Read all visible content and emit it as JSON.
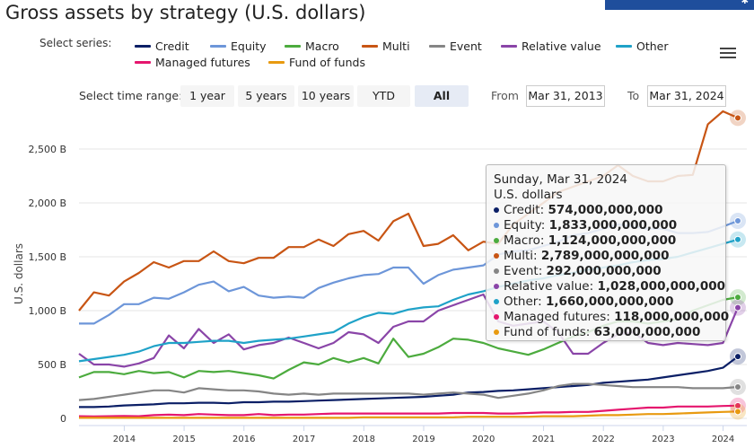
{
  "title": "Gross assets by strategy (U.S. dollars)",
  "select_series_label": "Select series:",
  "legend": [
    {
      "name": "Credit",
      "color": "#0b1f66"
    },
    {
      "name": "Equity",
      "color": "#6d96d9"
    },
    {
      "name": "Macro",
      "color": "#4cab3e"
    },
    {
      "name": "Multi",
      "color": "#c85514"
    },
    {
      "name": "Event",
      "color": "#858585"
    },
    {
      "name": "Relative value",
      "color": "#8a45a8"
    },
    {
      "name": "Other",
      "color": "#1fa2c8"
    },
    {
      "name": "Managed futures",
      "color": "#e5166e"
    },
    {
      "name": "Fund of funds",
      "color": "#e89a10"
    }
  ],
  "menu_icon": "hamburger-menu-icon",
  "time_range": {
    "label": "Select time range:",
    "buttons": [
      "1 year",
      "5 years",
      "10 years",
      "YTD",
      "All"
    ],
    "active": "All",
    "from_label": "From",
    "from_value": "Mar 31, 2013",
    "to_label": "To",
    "to_value": "Mar 31, 2024"
  },
  "tooltip": {
    "date": "Sunday, Mar 31, 2024",
    "unit": "U.S. dollars",
    "rows": [
      {
        "name": "Credit",
        "value": "574,000,000,000",
        "color": "#0b1f66"
      },
      {
        "name": "Equity",
        "value": "1,833,000,000,000",
        "color": "#6d96d9"
      },
      {
        "name": "Macro",
        "value": "1,124,000,000,000",
        "color": "#4cab3e"
      },
      {
        "name": "Multi",
        "value": "2,789,000,000,000",
        "color": "#c85514"
      },
      {
        "name": "Event",
        "value": "292,000,000,000",
        "color": "#858585"
      },
      {
        "name": "Relative value",
        "value": "1,028,000,000,000",
        "color": "#8a45a8"
      },
      {
        "name": "Other",
        "value": "1,660,000,000,000",
        "color": "#1fa2c8"
      },
      {
        "name": "Managed futures",
        "value": "118,000,000,000",
        "color": "#e5166e"
      },
      {
        "name": "Fund of funds",
        "value": "63,000,000,000",
        "color": "#e89a10"
      }
    ]
  },
  "chart_data": {
    "type": "line",
    "title": "Gross assets by strategy (U.S. dollars)",
    "xlabel": "",
    "ylabel": "U.S. dollars",
    "x_ticks": [
      "2014",
      "2015",
      "2016",
      "2017",
      "2018",
      "2019",
      "2020",
      "2021",
      "2022",
      "2023",
      "2024"
    ],
    "y_ticks": [
      "0",
      "500 B",
      "1,000 B",
      "1,500 B",
      "2,000 B",
      "2,500 B"
    ],
    "ylim": [
      0,
      2800
    ],
    "x_range": [
      "2013-03-31",
      "2024-03-31"
    ],
    "grid": true,
    "units": "billions of U.S. dollars",
    "x": [
      "2013-03-31",
      "2013-06-30",
      "2013-09-30",
      "2013-12-31",
      "2014-03-31",
      "2014-06-30",
      "2014-09-30",
      "2014-12-31",
      "2015-03-31",
      "2015-06-30",
      "2015-09-30",
      "2015-12-31",
      "2016-03-31",
      "2016-06-30",
      "2016-09-30",
      "2016-12-31",
      "2017-03-31",
      "2017-06-30",
      "2017-09-30",
      "2017-12-31",
      "2018-03-31",
      "2018-06-30",
      "2018-09-30",
      "2018-12-31",
      "2019-03-31",
      "2019-06-30",
      "2019-09-30",
      "2019-12-31",
      "2020-03-31",
      "2020-06-30",
      "2020-09-30",
      "2020-12-31",
      "2021-03-31",
      "2021-06-30",
      "2021-09-30",
      "2021-12-31",
      "2022-03-31",
      "2022-06-30",
      "2022-09-30",
      "2022-12-31",
      "2023-03-31",
      "2023-06-30",
      "2023-09-30",
      "2023-12-31",
      "2024-03-31"
    ],
    "series": [
      {
        "name": "Credit",
        "values": [
          105,
          105,
          110,
          120,
          125,
          130,
          140,
          140,
          145,
          145,
          140,
          150,
          150,
          155,
          155,
          160,
          165,
          170,
          175,
          180,
          185,
          190,
          195,
          200,
          210,
          220,
          240,
          245,
          255,
          260,
          270,
          280,
          290,
          300,
          310,
          330,
          340,
          350,
          360,
          380,
          400,
          420,
          440,
          470,
          574
        ]
      },
      {
        "name": "Equity",
        "values": [
          880,
          880,
          960,
          1060,
          1060,
          1120,
          1110,
          1170,
          1240,
          1270,
          1180,
          1220,
          1140,
          1120,
          1130,
          1120,
          1210,
          1260,
          1300,
          1330,
          1340,
          1400,
          1400,
          1250,
          1330,
          1380,
          1400,
          1420,
          1520,
          1550,
          1560,
          1600,
          1640,
          1700,
          1720,
          1760,
          1800,
          1780,
          1760,
          1760,
          1720,
          1720,
          1730,
          1780,
          1833
        ]
      },
      {
        "name": "Macro",
        "values": [
          380,
          430,
          430,
          410,
          440,
          420,
          430,
          380,
          440,
          430,
          440,
          420,
          400,
          370,
          450,
          520,
          500,
          560,
          520,
          560,
          510,
          740,
          570,
          600,
          660,
          740,
          730,
          700,
          650,
          620,
          590,
          640,
          700,
          760,
          800,
          860,
          900,
          900,
          880,
          900,
          920,
          1000,
          1050,
          1100,
          1124
        ]
      },
      {
        "name": "Multi",
        "values": [
          1000,
          1170,
          1140,
          1270,
          1350,
          1450,
          1400,
          1460,
          1460,
          1550,
          1460,
          1440,
          1490,
          1490,
          1590,
          1590,
          1660,
          1600,
          1710,
          1740,
          1650,
          1830,
          1900,
          1600,
          1620,
          1700,
          1560,
          1640,
          1620,
          1800,
          1900,
          2000,
          2100,
          2150,
          2200,
          2250,
          2350,
          2250,
          2200,
          2200,
          2250,
          2260,
          2730,
          2850,
          2789
        ]
      },
      {
        "name": "Event",
        "values": [
          170,
          180,
          200,
          220,
          240,
          260,
          260,
          240,
          280,
          270,
          260,
          260,
          250,
          230,
          220,
          230,
          220,
          230,
          230,
          230,
          230,
          230,
          230,
          220,
          230,
          240,
          230,
          220,
          190,
          210,
          230,
          260,
          300,
          320,
          320,
          310,
          300,
          290,
          290,
          290,
          290,
          280,
          280,
          280,
          292
        ]
      },
      {
        "name": "Relative value",
        "values": [
          600,
          500,
          500,
          480,
          510,
          560,
          770,
          650,
          830,
          700,
          780,
          640,
          680,
          700,
          750,
          700,
          650,
          700,
          800,
          780,
          700,
          850,
          900,
          900,
          1000,
          1050,
          1100,
          1150,
          900,
          860,
          880,
          900,
          800,
          600,
          600,
          700,
          780,
          800,
          700,
          680,
          700,
          690,
          680,
          700,
          1028
        ]
      },
      {
        "name": "Other",
        "values": [
          530,
          550,
          570,
          590,
          620,
          670,
          700,
          700,
          710,
          720,
          720,
          700,
          720,
          730,
          740,
          760,
          780,
          800,
          880,
          940,
          980,
          970,
          1010,
          1030,
          1040,
          1100,
          1150,
          1180,
          1220,
          1250,
          1280,
          1300,
          1330,
          1350,
          1380,
          1400,
          1420,
          1450,
          1470,
          1480,
          1500,
          1540,
          1580,
          1620,
          1660
        ]
      },
      {
        "name": "Managed futures",
        "values": [
          20,
          18,
          20,
          22,
          20,
          30,
          35,
          30,
          40,
          35,
          30,
          30,
          40,
          30,
          35,
          35,
          40,
          45,
          45,
          45,
          45,
          45,
          45,
          45,
          45,
          50,
          50,
          50,
          45,
          45,
          50,
          55,
          55,
          60,
          60,
          70,
          80,
          90,
          100,
          100,
          110,
          110,
          110,
          115,
          118
        ]
      },
      {
        "name": "Fund of funds",
        "values": [
          5,
          5,
          5,
          5,
          5,
          5,
          5,
          5,
          5,
          5,
          5,
          5,
          5,
          5,
          5,
          5,
          5,
          5,
          5,
          10,
          10,
          10,
          10,
          10,
          10,
          10,
          15,
          15,
          15,
          15,
          15,
          20,
          20,
          20,
          25,
          30,
          30,
          35,
          40,
          40,
          45,
          50,
          55,
          60,
          63
        ]
      }
    ]
  }
}
